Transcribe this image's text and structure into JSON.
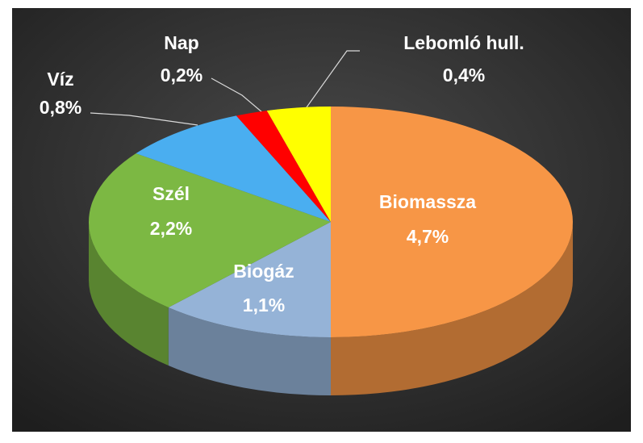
{
  "chart_data": {
    "type": "pie",
    "categories": [
      "Biomassza",
      "Biogáz",
      "Szél",
      "Víz",
      "Nap",
      "Lebomló hull."
    ],
    "values": [
      4.7,
      1.1,
      2.2,
      0.8,
      0.2,
      0.4
    ],
    "value_labels": [
      "4,7%",
      "1,1%",
      "2,2%",
      "0,8%",
      "0,2%",
      "0,4%"
    ],
    "colors": [
      "#f79646",
      "#95b3d7",
      "#7cb843",
      "#4aaef0",
      "#ff0000",
      "#ffff00"
    ]
  }
}
